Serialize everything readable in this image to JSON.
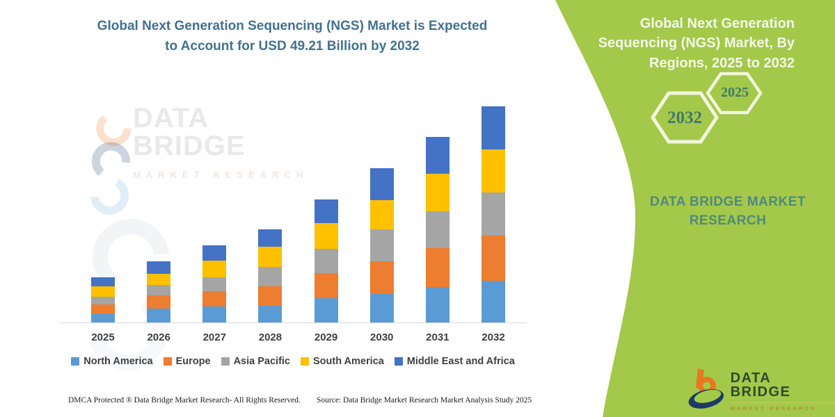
{
  "header": {
    "title_lines": [
      "Global Next Generation Sequencing (NGS) Market is Expected",
      "to Account for USD 49.21 Billion by 2032"
    ]
  },
  "watermark": {
    "line1": "DATA BRIDGE",
    "line2": "MARKET RESEARCH"
  },
  "chart_data": {
    "type": "bar",
    "stacked": true,
    "title": "Global Next Generation Sequencing (NGS) Market is Expected to Account for USD 49.21 Billion by 2032",
    "unit": "USD Billion (values estimated from bar heights; 2032 total labeled 49.21)",
    "categories": [
      "2025",
      "2026",
      "2027",
      "2028",
      "2029",
      "2030",
      "2031",
      "2032"
    ],
    "series": [
      {
        "name": "North America",
        "color": "#5B9BD5",
        "values": [
          2.0,
          3.1,
          3.7,
          3.8,
          5.5,
          6.5,
          8.1,
          9.5
        ]
      },
      {
        "name": "Europe",
        "color": "#ED7D31",
        "values": [
          2.2,
          3.0,
          3.4,
          4.4,
          5.7,
          7.4,
          8.8,
          10.3
        ]
      },
      {
        "name": "Asia Pacific",
        "color": "#A5A5A5",
        "values": [
          1.7,
          2.4,
          3.2,
          4.4,
          5.6,
          7.3,
          8.5,
          9.76
        ]
      },
      {
        "name": "South America",
        "color": "#FFC000",
        "values": [
          2.3,
          2.6,
          3.8,
          4.6,
          5.9,
          6.6,
          8.4,
          9.9
        ]
      },
      {
        "name": "Middle East and Africa",
        "color": "#4472C4",
        "values": [
          2.1,
          2.9,
          3.4,
          4.0,
          5.3,
          7.3,
          8.5,
          9.75
        ]
      }
    ],
    "totals": [
      10.3,
      14.0,
      17.5,
      21.2,
      28.0,
      35.1,
      42.3,
      49.21
    ],
    "xlabel": "",
    "ylabel": "",
    "ylim": [
      0,
      51.5
    ],
    "grid": false,
    "legend_position": "bottom"
  },
  "right_panel": {
    "bg_color": "#A4C84A",
    "title": "Global Next Generation Sequencing (NGS) Market, By Regions, 2025 to 2032",
    "hexagon_large_label": "2032",
    "hexagon_small_label": "2025",
    "brand_text": "DATA BRIDGE MARKET RESEARCH",
    "logo_name": "DATA BRIDGE",
    "logo_sub": "MARKET RESEARCH"
  },
  "footer": {
    "left": "DMCA Protected ® Data Bridge Market Research-  All Rights Reserved.",
    "source": "Source: Data Bridge Market Research  Market Analysis Study 2025"
  }
}
